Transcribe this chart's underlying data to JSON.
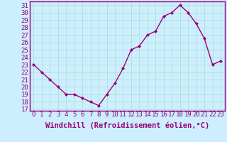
{
  "x": [
    0,
    1,
    2,
    3,
    4,
    5,
    6,
    7,
    8,
    9,
    10,
    11,
    12,
    13,
    14,
    15,
    16,
    17,
    18,
    19,
    20,
    21,
    22,
    23
  ],
  "y": [
    23,
    22,
    21,
    20,
    19,
    19,
    18.5,
    18,
    17.5,
    19,
    20.5,
    22.5,
    25,
    25.5,
    27,
    27.5,
    29.5,
    30,
    31,
    30,
    28.5,
    26.5,
    23,
    23.5
  ],
  "line_color": "#990077",
  "marker": "D",
  "marker_size": 2,
  "bg_color": "#cceeff",
  "grid_color": "#aaddcc",
  "xlabel": "Windchill (Refroidissement éolien,°C)",
  "xlabel_color": "#990077",
  "ylabel_ticks": [
    17,
    18,
    19,
    20,
    21,
    22,
    23,
    24,
    25,
    26,
    27,
    28,
    29,
    30,
    31
  ],
  "ylim": [
    16.8,
    31.5
  ],
  "xlim": [
    -0.5,
    23.5
  ],
  "tick_color": "#990077",
  "tick_fontsize": 6.5,
  "xlabel_fontsize": 7.5
}
